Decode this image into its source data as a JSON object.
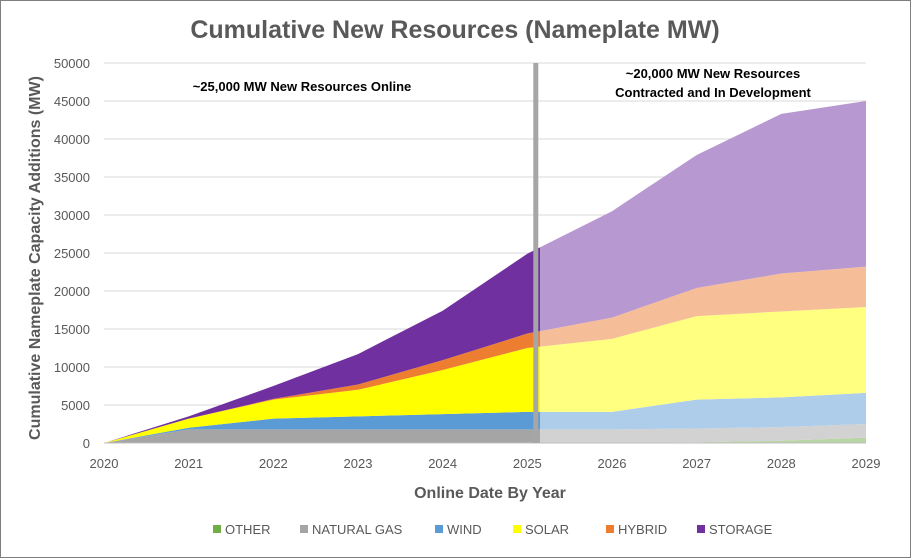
{
  "chart_data": {
    "type": "area",
    "title": "Cumulative New Resources (Nameplate MW)",
    "xlabel": "Online Date By Year",
    "ylabel": "Cumulative Nameplate Capacity Additions (MW)",
    "x": [
      2020,
      2021,
      2022,
      2023,
      2024,
      2025,
      2026,
      2027,
      2028,
      2029
    ],
    "xlim": [
      2020,
      2029
    ],
    "ylim": [
      0,
      50000
    ],
    "yticks": [
      0,
      5000,
      10000,
      15000,
      20000,
      25000,
      30000,
      35000,
      40000,
      45000,
      50000
    ],
    "stacked": true,
    "divider_x": 2025.1,
    "series": [
      {
        "name": "OTHER",
        "color": "#70ad47",
        "values": [
          0,
          0,
          0,
          0,
          0,
          0,
          0,
          100,
          300,
          700
        ]
      },
      {
        "name": "NATURAL GAS",
        "color": "#a5a5a5",
        "values": [
          0,
          1800,
          1800,
          1800,
          1800,
          1800,
          1800,
          1800,
          1800,
          1800
        ]
      },
      {
        "name": "WIND",
        "color": "#5b9bd5",
        "values": [
          0,
          200,
          1400,
          1700,
          2000,
          2300,
          2300,
          3800,
          3900,
          4100
        ]
      },
      {
        "name": "SOLAR",
        "color": "#ffff00",
        "values": [
          0,
          1200,
          2500,
          3500,
          5800,
          8400,
          9600,
          11000,
          11300,
          11300
        ]
      },
      {
        "name": "HYBRID",
        "color": "#ed7d31",
        "values": [
          0,
          0,
          100,
          700,
          1300,
          1900,
          2800,
          3700,
          5000,
          5300
        ]
      },
      {
        "name": "STORAGE",
        "color": "#7030a0",
        "values": [
          0,
          300,
          1700,
          4000,
          6500,
          10500,
          14000,
          17500,
          21000,
          21800
        ]
      }
    ],
    "annotations": [
      {
        "lines": [
          "~25,000 MW New Resources Online"
        ]
      },
      {
        "lines": [
          "~20,000 MW New Resources",
          "Contracted and In Development"
        ]
      }
    ],
    "legend_position": "bottom"
  }
}
